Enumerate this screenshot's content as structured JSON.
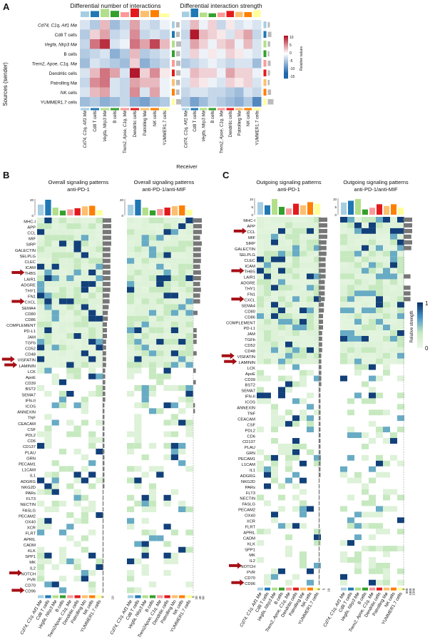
{
  "panels": {
    "A": {
      "letter": "A",
      "left_title": "Differential number of interactions",
      "right_title": "Differential interaction strength",
      "y_axis_label": "Sources (sender)",
      "x_axis_label": "Receiver",
      "colorbar_label": "Relative values",
      "colorbar_ticks": [
        "10",
        "5",
        "0",
        "-5",
        "-10",
        "-15"
      ]
    },
    "B": {
      "letter": "B",
      "left_title": [
        "Overall signaling patterns",
        "anti-PD-1"
      ],
      "right_title": [
        "Overall signaling patterns",
        "anti-PD-1/anti-MIF"
      ]
    },
    "C": {
      "letter": "C",
      "left_title": [
        "Outgoing signaling patterns",
        "anti-PD-1"
      ],
      "right_title": [
        "Outgoing signaling patterns",
        "anti-PD-1/anti-MIF"
      ],
      "colorbar_label": "Relative strength",
      "colorbar_ticks": [
        "1",
        "0"
      ]
    }
  },
  "cell_types": [
    "Cd74, C1q, Aif1 Mø",
    "Cd8 T cells",
    "Vegfa, Nlrp3 Mø",
    "B cells",
    "Trem2, Apoe, C1q, Mø",
    "Dendritic cells",
    "Patrolling Mø",
    "NK cells",
    "YUMMER1.7 cells"
  ],
  "cell_types_b": [
    "Cd74, C1q, Aif1 Mø",
    "Cd8 T cells",
    "Vegfa, Nlrp3 Mø",
    "B cells",
    "Trem2Apoe, C1q, Mø",
    "Dendritic cells",
    "Patrolling Mo",
    "NK cells",
    "YUMMER1.7 cells"
  ],
  "cell_colors": [
    "#a6cee3",
    "#1f78b4",
    "#b2df8a",
    "#33a02c",
    "#fb9a99",
    "#e31a1c",
    "#fdbf6f",
    "#ff7f00",
    "#ffff99"
  ],
  "pathways_B": [
    "MHC-I",
    "APP",
    "CCL",
    "MIF",
    "SIRP",
    "GALECTIN",
    "SELPLG",
    "CLEC",
    "ICAM",
    "THBS",
    "LAIR1",
    "ADGRE",
    "THY1",
    "FN1",
    "CXCL",
    "SEMA4",
    "CD80",
    "CD86",
    "COMPLEMENT",
    "PD-L1",
    "JAM",
    "TGFb",
    "CD52",
    "CD48",
    "VISFATIN",
    "LAMININ",
    "LCK",
    "ApoE",
    "CD39",
    "BST2",
    "SEMA7",
    "IFN-II",
    "ICOS",
    "ANNEXIN",
    "TNF",
    "CEACAM",
    "CSF",
    "PDL2",
    "CD6",
    "CD137",
    "PLAU",
    "GRN",
    "PECAM1",
    "L1CAM",
    "IL1",
    "ADGRG",
    "NKG2D",
    "PARs",
    "FLT3",
    "NECTIN",
    "FASLG",
    "PECAM2",
    "OX40",
    "XCR",
    "FLRT",
    "APRIL",
    "CADM",
    "KLK",
    "SPP1",
    "MK",
    "IL2",
    "NOTCH",
    "PVR",
    "CD70",
    "CD96"
  ],
  "pathways_C": [
    "MHC-I",
    "APP",
    "CCL",
    "MIF",
    "SIRP",
    "GALECTIN",
    "SELPLG",
    "CLEC",
    "ICAM",
    "THBS",
    "LAIR1",
    "ADGRE",
    "THY1",
    "FN1",
    "CXCL",
    "SEMA4",
    "CD80",
    "CD86",
    "COMPLEMENT",
    "PD-L1",
    "JAM",
    "TGFb",
    "CD52",
    "CD48",
    "VISFATIN",
    "LAMININ",
    "LCK",
    "ApoE",
    "CD39",
    "BST2",
    "SEMA7",
    "IFN-II",
    "ICOS",
    "ANNEXIN",
    "TNF",
    "CEACAM",
    "CSF",
    "PDL2",
    "CD6",
    "CD137",
    "PLAU",
    "GRN",
    "PECAM1",
    "L1CAM",
    "IL1",
    "ADGRG",
    "NKG2D",
    "PARs",
    "FLT3",
    "NECTIN",
    "FASLG",
    "PECAM2",
    "OX40",
    "XCR",
    "FLRT",
    "APRIL",
    "CADM",
    "KLK",
    "SPP1",
    "MK",
    "IL2",
    "NOTCH",
    "PVR",
    "CD70",
    "CD96"
  ],
  "arrows_B": [
    "THBS",
    "CXCL",
    "VISFATIN",
    "LAMININ",
    "NOTCH",
    "CD96"
  ],
  "arrows_C": [
    "CCL",
    "THBS",
    "CXCL",
    "VISFATIN",
    "LAMININ",
    "NOTCH",
    "CD96"
  ],
  "colors": {
    "heat_pos": "#b2182b",
    "heat_neg": "#2166ac",
    "strength_high": "#08306b",
    "strength_mid": "#4292c6",
    "strength_low": "#c7e9c0",
    "side_bar": "#777777"
  },
  "chart_data": [
    {
      "id": "A-left",
      "type": "heatmap",
      "title": "Differential number of interactions",
      "ylabel": "Sources (sender)",
      "xlabel": "Receiver",
      "rows": [
        "Cd74, C1q, Aif1 Mø",
        "Cd8 T cells",
        "Vegfa, Nlrp3 Mø",
        "B cells",
        "Trem2, Apoe, C1q, Mø",
        "Dendritic cells",
        "Patrolling Mø",
        "NK cells",
        "YUMMER1.7 cells"
      ],
      "cols": [
        "Cd74, C1q, Aif1 Mø",
        "Cd8 T cells",
        "Vegfa, Nlrp3 Mø",
        "B cells",
        "Trem2, Apoe, C1q, Mø",
        "Dendritic cells",
        "Patrolling Mø",
        "NK cells",
        "YUMMER1.7 cells"
      ],
      "values": [
        [
          -2,
          -4,
          3,
          -5,
          -3,
          4,
          -2,
          -3,
          -1
        ],
        [
          -4,
          2,
          4,
          -3,
          -2,
          5,
          -3,
          -2,
          -3
        ],
        [
          -3,
          6,
          9,
          -2,
          -1,
          6,
          4,
          8,
          3
        ],
        [
          -4,
          -3,
          -2,
          -6,
          -4,
          3,
          -4,
          -3,
          -2
        ],
        [
          -5,
          -2,
          -3,
          -4,
          -5,
          2,
          -6,
          -4,
          -3
        ],
        [
          -2,
          3,
          6,
          4,
          -2,
          10,
          2,
          5,
          1
        ],
        [
          -3,
          5,
          6,
          -2,
          -3,
          4,
          3,
          3,
          -1
        ],
        [
          -2,
          3,
          4,
          -2,
          -3,
          5,
          -2,
          4,
          -1
        ],
        [
          -5,
          -4,
          -6,
          -5,
          -3,
          -6,
          -7,
          -5,
          -4
        ]
      ],
      "range": [
        -15,
        10
      ]
    },
    {
      "id": "A-right",
      "type": "heatmap",
      "title": "Differential interaction strength",
      "ylabel": "Sources (sender)",
      "xlabel": "Receiver",
      "rows": [
        "Cd74, C1q, Aif1 Mø",
        "Cd8 T cells",
        "Vegfa, Nlrp3 Mø",
        "B cells",
        "Trem2, Apoe, C1q, Mø",
        "Dendritic cells",
        "Patrolling Mø",
        "NK cells",
        "YUMMER1.7 cells"
      ],
      "cols": [
        "Cd74, C1q, Aif1 Mø",
        "Cd8 T cells",
        "Vegfa, Nlrp3 Mø",
        "B cells",
        "Trem2, Apoe, C1q, Mø",
        "Dendritic cells",
        "Patrolling Mø",
        "NK cells",
        "YUMMER1.7 cells"
      ],
      "values": [
        [
          -2,
          3,
          -1,
          2,
          -3,
          1,
          -2,
          -1,
          -2
        ],
        [
          -3,
          10,
          3,
          2,
          1,
          -2,
          2,
          4,
          -3
        ],
        [
          -2,
          4,
          2,
          -1,
          2,
          3,
          -1,
          3,
          -2
        ],
        [
          -2,
          2,
          -1,
          1,
          -1,
          2,
          1,
          -1,
          -2
        ],
        [
          -4,
          -3,
          -2,
          -1,
          -2,
          -3,
          -2,
          -2,
          -5
        ],
        [
          -1,
          3,
          2,
          2,
          -1,
          4,
          2,
          2,
          -1
        ],
        [
          -2,
          2,
          1,
          -1,
          -2,
          2,
          1,
          2,
          -2
        ],
        [
          -3,
          -2,
          -2,
          -3,
          -3,
          -4,
          -5,
          -2,
          -3
        ],
        [
          -4,
          -7,
          -5,
          -3,
          -4,
          -5,
          -6,
          -4,
          -9
        ]
      ],
      "range": [
        -15,
        10
      ]
    },
    {
      "id": "B-left",
      "type": "heatmap",
      "title": "Overall signaling patterns anti-PD-1",
      "top_bar_axis": [
        0,
        20
      ],
      "top_bars": [
        18,
        26,
        13,
        8,
        10,
        12,
        15,
        16,
        9
      ],
      "side_bar_axis": [
        0,
        10
      ],
      "side_bars": [
        10,
        10,
        10,
        10,
        10,
        9,
        9,
        9,
        9,
        9,
        9,
        9,
        9,
        8,
        8,
        7,
        6,
        6,
        5,
        5,
        5,
        4,
        4,
        4,
        4,
        4,
        3,
        3,
        3,
        3,
        3,
        3,
        2,
        2,
        2,
        2,
        2,
        2,
        2,
        2,
        2,
        2,
        2,
        2,
        2,
        2,
        2,
        1,
        1,
        1,
        1,
        1,
        1,
        1,
        1,
        1,
        1,
        1,
        1,
        1,
        1,
        1,
        1,
        1,
        1
      ],
      "range": [
        0,
        1
      ],
      "seed": 11
    },
    {
      "id": "B-right",
      "type": "heatmap",
      "title": "Overall signaling patterns anti-PD-1/anti-MIF",
      "top_bar_axis": [
        0,
        20
      ],
      "top_bars": [
        15,
        22,
        11,
        7,
        9,
        11,
        13,
        14,
        8
      ],
      "side_bar_axis": [
        0,
        20,
        40,
        60
      ],
      "side_bars": [
        10,
        10,
        10,
        8,
        10,
        9,
        9,
        9,
        8,
        9,
        9,
        8,
        9,
        8,
        8,
        0,
        5,
        0,
        0,
        4,
        4,
        4,
        0,
        4,
        0,
        0,
        3,
        0,
        3,
        0,
        0,
        0,
        2,
        2,
        0,
        0,
        0,
        0,
        0,
        0,
        0,
        0,
        0,
        0,
        0,
        0,
        0,
        0,
        0,
        0,
        0,
        0,
        0,
        0,
        0,
        0,
        0,
        0,
        0,
        0,
        0,
        0,
        0,
        0,
        0
      ],
      "range": [
        0,
        1
      ],
      "seed": 23
    },
    {
      "id": "C-left",
      "type": "heatmap",
      "title": "Outgoing signaling patterns anti-PD-1",
      "top_bar_axis": [
        0,
        5,
        10
      ],
      "top_bars": [
        8,
        6,
        10,
        5,
        4,
        7,
        6,
        8,
        7
      ],
      "side_bar_axis": [
        0,
        5,
        10
      ],
      "side_bars": [
        10,
        10,
        10,
        10,
        9,
        9,
        9,
        8,
        8,
        8,
        8,
        7,
        7,
        7,
        7,
        6,
        6,
        5,
        5,
        5,
        4,
        4,
        4,
        4,
        3,
        3,
        3,
        3,
        3,
        3,
        2,
        2,
        2,
        2,
        2,
        2,
        2,
        2,
        2,
        2,
        2,
        2,
        2,
        2,
        2,
        2,
        1,
        1,
        1,
        1,
        1,
        1,
        1,
        1,
        1,
        1,
        1,
        1,
        1,
        1,
        1,
        1,
        1,
        1,
        1
      ],
      "range": [
        0,
        1
      ],
      "seed": 37
    },
    {
      "id": "C-right",
      "type": "heatmap",
      "title": "Outgoing signaling patterns anti-PD-1/anti-MIF",
      "top_bar_axis": [
        0,
        5,
        10
      ],
      "top_bars": [
        7,
        8,
        9,
        3,
        4,
        6,
        5,
        6,
        4
      ],
      "side_bar_axis": [
        0,
        500,
        1000,
        1500
      ],
      "side_bars": [
        10,
        10,
        10,
        9,
        10,
        9,
        0,
        0,
        0,
        0,
        8,
        0,
        8,
        8,
        8,
        0,
        0,
        0,
        0,
        0,
        0,
        0,
        0,
        0,
        0,
        0,
        0,
        0,
        0,
        0,
        0,
        0,
        0,
        0,
        0,
        0,
        0,
        0,
        0,
        0,
        0,
        0,
        0,
        0,
        0,
        0,
        0,
        0,
        0,
        0,
        0,
        0,
        0,
        0,
        0,
        0,
        0,
        0,
        0,
        0,
        0,
        0,
        0,
        0,
        0
      ],
      "range": [
        0,
        1
      ],
      "seed": 53
    }
  ]
}
